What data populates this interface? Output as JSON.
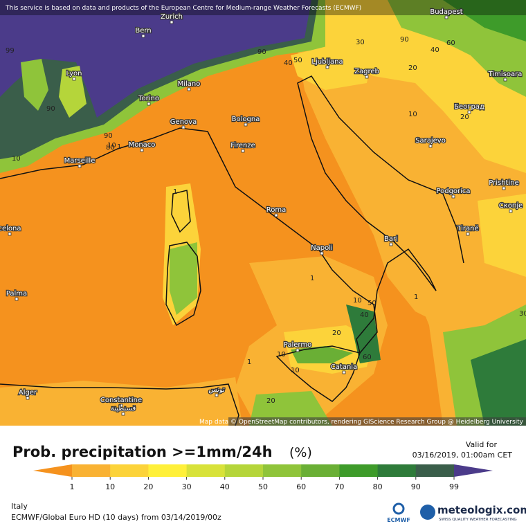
{
  "map": {
    "disclaimer": "This service is based on data and products of the European Centre for Medium-range Weather Forecasts (ECMWF)",
    "attribution": "Map data © OpenStreetMap contributors, rendering GIScience Research Group @ Heidelberg University",
    "cities": [
      "Bern",
      "Zurich",
      "Budapest",
      "Lyon",
      "Milano",
      "Torino",
      "Genova",
      "Bologna",
      "Ljubljana",
      "Zagreb",
      "Timisoara",
      "Београд",
      "Sarajevo",
      "Monaco",
      "Marseille",
      "Firenze",
      "Roma",
      "Podgorica",
      "Prishtine",
      "Скопје",
      "Tiranë",
      "Napoli",
      "Bari",
      "Palma",
      "celona",
      "Palermo",
      "Catania",
      "Alger",
      "Constantine",
      "قسنطينة",
      "تونس"
    ],
    "contour_labels": [
      99,
      90,
      90,
      40,
      50,
      30,
      90,
      40,
      60,
      20,
      90,
      80,
      10,
      1,
      10,
      1,
      10,
      20,
      50,
      40,
      10,
      20,
      60,
      10,
      1,
      20,
      10,
      30,
      1,
      1
    ]
  },
  "legend": {
    "title": "Prob. precipitation >=1mm/24h",
    "unit": "(%)",
    "valid_label": "Valid for",
    "valid_time": "03/16/2019, 01:00am CET",
    "ticks": [
      1,
      10,
      20,
      30,
      40,
      50,
      60,
      70,
      80,
      90,
      99
    ],
    "colors": [
      "#f5921e",
      "#f9b233",
      "#fcd33a",
      "#fff03a",
      "#d8e23a",
      "#b5d53a",
      "#8fc43a",
      "#6aaf35",
      "#3e9b2a",
      "#2e7b3a",
      "#3a5e4a",
      "#4b3b8a"
    ]
  },
  "footer": {
    "region": "Italy",
    "model": "ECMWF/Global Euro HD (10 days) from 03/14/2019/00z",
    "ecmwf": "ECMWF",
    "brand": "meteologix.com",
    "slogan": "SWISS QUALITY WEATHER FORECASTING"
  }
}
